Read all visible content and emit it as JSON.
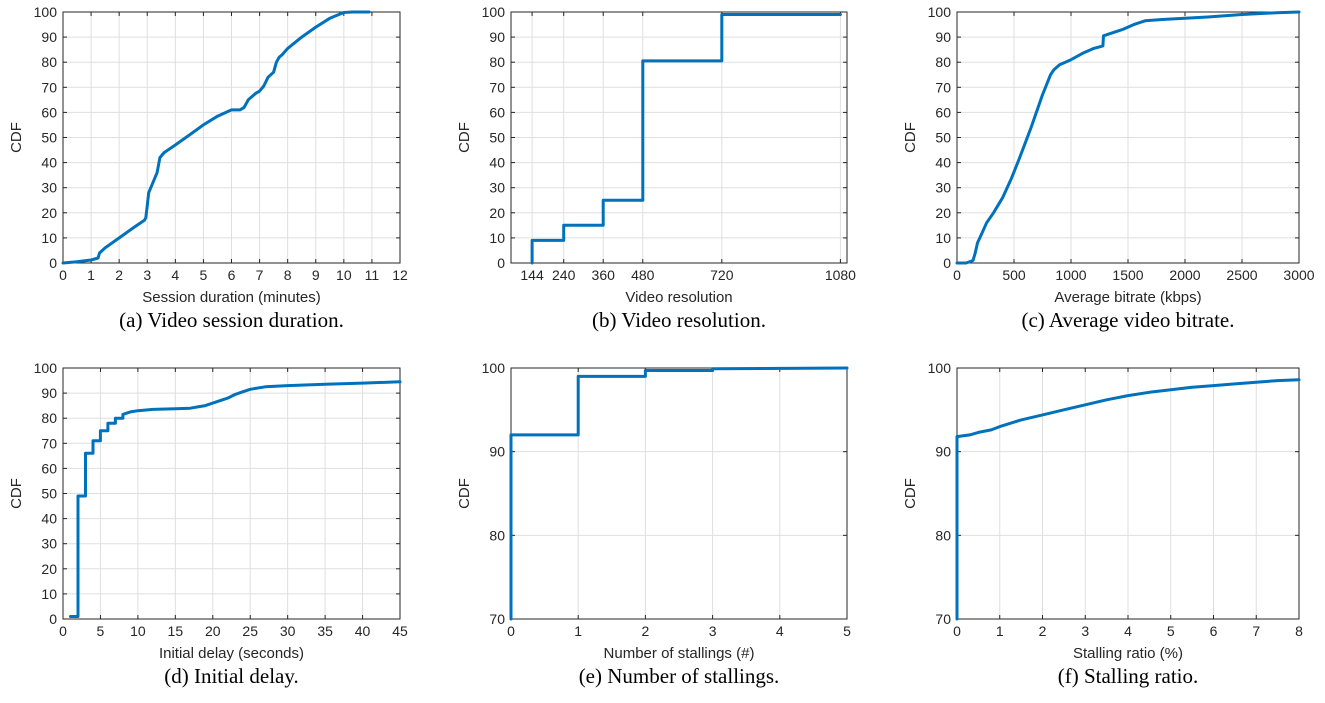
{
  "style": {
    "line_color": "#0072bd",
    "grid_color": "#dfdfdf",
    "axis_color": "#262626"
  },
  "chart_data": [
    {
      "type": "line",
      "caption": "(a) Video session duration.",
      "xlabel": "Session duration (minutes)",
      "ylabel": "CDF",
      "xlim": [
        0,
        12
      ],
      "ylim": [
        0,
        100
      ],
      "xticks": [
        0,
        1,
        2,
        3,
        4,
        5,
        6,
        7,
        8,
        9,
        10,
        11,
        12
      ],
      "yticks": [
        0,
        10,
        20,
        30,
        40,
        50,
        60,
        70,
        80,
        90,
        100
      ],
      "grid": true,
      "series": [
        {
          "x": [
            0,
            0.5,
            1.0,
            1.25,
            1.3,
            1.5,
            2.0,
            2.5,
            2.9,
            2.95,
            3.0,
            3.05,
            3.2,
            3.35,
            3.45,
            3.6,
            4.0,
            4.5,
            5.0,
            5.5,
            5.9,
            6.0,
            6.3,
            6.45,
            6.6,
            6.85,
            7.0,
            7.15,
            7.3,
            7.5,
            7.6,
            7.7,
            7.8,
            8.0,
            8.5,
            9.0,
            9.5,
            10.0,
            10.3,
            10.5,
            10.9
          ],
          "y": [
            0,
            0.5,
            1.2,
            2,
            4,
            6,
            10,
            14,
            17,
            18,
            23,
            28,
            32,
            36,
            42,
            44,
            47,
            51,
            55,
            58.5,
            60.5,
            61,
            61,
            62,
            65,
            67.5,
            68.5,
            70.5,
            74,
            76,
            80,
            82,
            83,
            85.5,
            90,
            94,
            97.5,
            99.8,
            100,
            100,
            100
          ]
        }
      ]
    },
    {
      "type": "line",
      "caption": "(b) Video resolution.",
      "xlabel": "Video resolution",
      "ylabel": "CDF",
      "xlim": [
        80,
        1100
      ],
      "ylim": [
        0,
        100
      ],
      "xticks": [
        144,
        240,
        360,
        480,
        720,
        1080
      ],
      "yticks": [
        0,
        10,
        20,
        30,
        40,
        50,
        60,
        70,
        80,
        90,
        100
      ],
      "grid": true,
      "series": [
        {
          "x": [
            144,
            144,
            240,
            240,
            360,
            360,
            480,
            480,
            720,
            720,
            1080
          ],
          "y": [
            0,
            9,
            9,
            15,
            15,
            25,
            25,
            80.5,
            80.5,
            99,
            99
          ]
        }
      ]
    },
    {
      "type": "line",
      "caption": "(c) Average video bitrate.",
      "xlabel": "Average bitrate (kbps)",
      "ylabel": "CDF",
      "xlim": [
        0,
        3000
      ],
      "ylim": [
        0,
        100
      ],
      "xticks": [
        0,
        500,
        1000,
        1500,
        2000,
        2500,
        3000
      ],
      "yticks": [
        0,
        10,
        20,
        30,
        40,
        50,
        60,
        70,
        80,
        90,
        100
      ],
      "grid": true,
      "series": [
        {
          "x": [
            0,
            80,
            140,
            160,
            180,
            220,
            260,
            320,
            400,
            480,
            550,
            650,
            750,
            820,
            850,
            900,
            1000,
            1100,
            1200,
            1280,
            1285,
            1350,
            1450,
            1550,
            1650,
            1800,
            2000,
            2200,
            2500,
            2800,
            3000
          ],
          "y": [
            0,
            0,
            1,
            4,
            8,
            12,
            16,
            20,
            26,
            34,
            42,
            54,
            67,
            75,
            77,
            79,
            81,
            83.5,
            85.5,
            86.5,
            90.5,
            91.5,
            93,
            95,
            96.5,
            97,
            97.5,
            98,
            99,
            99.7,
            100
          ]
        }
      ]
    },
    {
      "type": "line",
      "caption": "(d) Initial delay.",
      "xlabel": "Initial delay (seconds)",
      "ylabel": "CDF",
      "xlim": [
        0,
        45
      ],
      "ylim": [
        0,
        100
      ],
      "xticks": [
        0,
        5,
        10,
        15,
        20,
        25,
        30,
        35,
        40,
        45
      ],
      "yticks": [
        0,
        10,
        20,
        30,
        40,
        50,
        60,
        70,
        80,
        90,
        100
      ],
      "grid": true,
      "series": [
        {
          "x": [
            1,
            2,
            2,
            3,
            3,
            4,
            4,
            5,
            5,
            6,
            6,
            7,
            7,
            8,
            8,
            9,
            10,
            12,
            15,
            17,
            18,
            19,
            20,
            21,
            22,
            23,
            24,
            25,
            27,
            30,
            35,
            40,
            45
          ],
          "y": [
            1,
            1,
            49,
            49,
            66,
            66,
            71,
            71,
            75,
            75,
            78,
            78,
            80,
            80,
            81.5,
            82.5,
            83,
            83.5,
            83.8,
            84,
            84.5,
            85,
            86,
            87,
            88,
            89.5,
            90.5,
            91.5,
            92.5,
            93,
            93.5,
            94,
            94.5
          ]
        }
      ]
    },
    {
      "type": "line",
      "caption": "(e) Number of stallings.",
      "xlabel": "Number of stallings (#)",
      "ylabel": "CDF",
      "xlim": [
        0,
        5
      ],
      "ylim": [
        70,
        100
      ],
      "xticks": [
        0,
        1,
        2,
        3,
        4,
        5
      ],
      "yticks": [
        70,
        80,
        90,
        100
      ],
      "grid": true,
      "series": [
        {
          "x": [
            0,
            0,
            1,
            1,
            2,
            2,
            3,
            3,
            5
          ],
          "y": [
            70,
            92,
            92,
            99,
            99,
            99.7,
            99.7,
            99.9,
            100
          ]
        }
      ]
    },
    {
      "type": "line",
      "caption": "(f) Stalling ratio.",
      "xlabel": "Stalling ratio (%)",
      "ylabel": "CDF",
      "xlim": [
        0,
        8
      ],
      "ylim": [
        70,
        100
      ],
      "xticks": [
        0,
        1,
        2,
        3,
        4,
        5,
        6,
        7,
        8
      ],
      "yticks": [
        70,
        80,
        90,
        100
      ],
      "grid": true,
      "series": [
        {
          "x": [
            0,
            0,
            0.3,
            0.5,
            0.8,
            1.0,
            1.5,
            2.0,
            2.5,
            3.0,
            3.5,
            4.0,
            4.5,
            5.0,
            5.5,
            6.0,
            6.5,
            7.0,
            7.5,
            8.0
          ],
          "y": [
            70,
            91.8,
            92,
            92.3,
            92.6,
            93,
            93.8,
            94.4,
            95.0,
            95.6,
            96.2,
            96.7,
            97.1,
            97.4,
            97.7,
            97.9,
            98.1,
            98.3,
            98.5,
            98.6
          ]
        }
      ]
    }
  ]
}
